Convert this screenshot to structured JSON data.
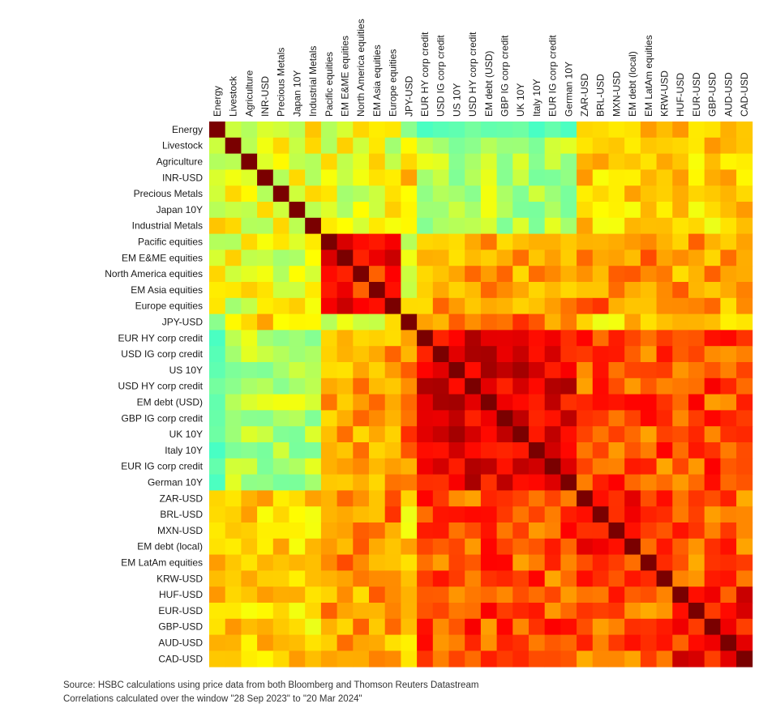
{
  "chart_data": {
    "type": "heatmap",
    "title": "",
    "labels": [
      "Energy",
      "Livestock",
      "Agriculture",
      "INR-USD",
      "Precious Metals",
      "Japan 10Y",
      "Industrial Metals",
      "Pacific equities",
      "EM E&ME equities",
      "North America equities",
      "EM Asia equities",
      "Europe equities",
      "JPY-USD",
      "EUR HY corp credit",
      "USD IG corp credit",
      "US 10Y",
      "USD HY corp credit",
      "EM debt (USD)",
      "GBP IG corp credit",
      "UK 10Y",
      "Italy 10Y",
      "EUR IG corp credit",
      "German 10Y",
      "ZAR-USD",
      "BRL-USD",
      "MXN-USD",
      "EM debt (local)",
      "EM LatAm equities",
      "KRW-USD",
      "HUF-USD",
      "EUR-USD",
      "GBP-USD",
      "AUD-USD",
      "CAD-USD"
    ],
    "groups": {
      "commodities_misc": [
        0,
        1,
        2,
        3,
        4,
        5,
        6
      ],
      "equities": [
        7,
        8,
        9,
        10,
        11
      ],
      "jpy": [
        12
      ],
      "rates_credit": [
        13,
        14,
        15,
        16,
        17,
        18,
        19,
        20,
        21,
        22
      ],
      "em_fx": [
        23,
        24,
        25,
        26,
        27,
        28
      ],
      "dm_fx": [
        29,
        30,
        31,
        32,
        33
      ]
    },
    "value_range": [
      -1,
      1
    ],
    "colorscale": [
      "#00ffff",
      "#ffff00",
      "#ff8c00",
      "#ff0000",
      "#7a0000"
    ],
    "diagonal": 1
  },
  "footnotes": {
    "source": "Source: HSBC calculations using price data from both Bloomberg and Thomson Reuters Datastream",
    "window": "Correlations calculated over the window \"28 Sep 2023\" to \"20 Mar 2024\""
  }
}
